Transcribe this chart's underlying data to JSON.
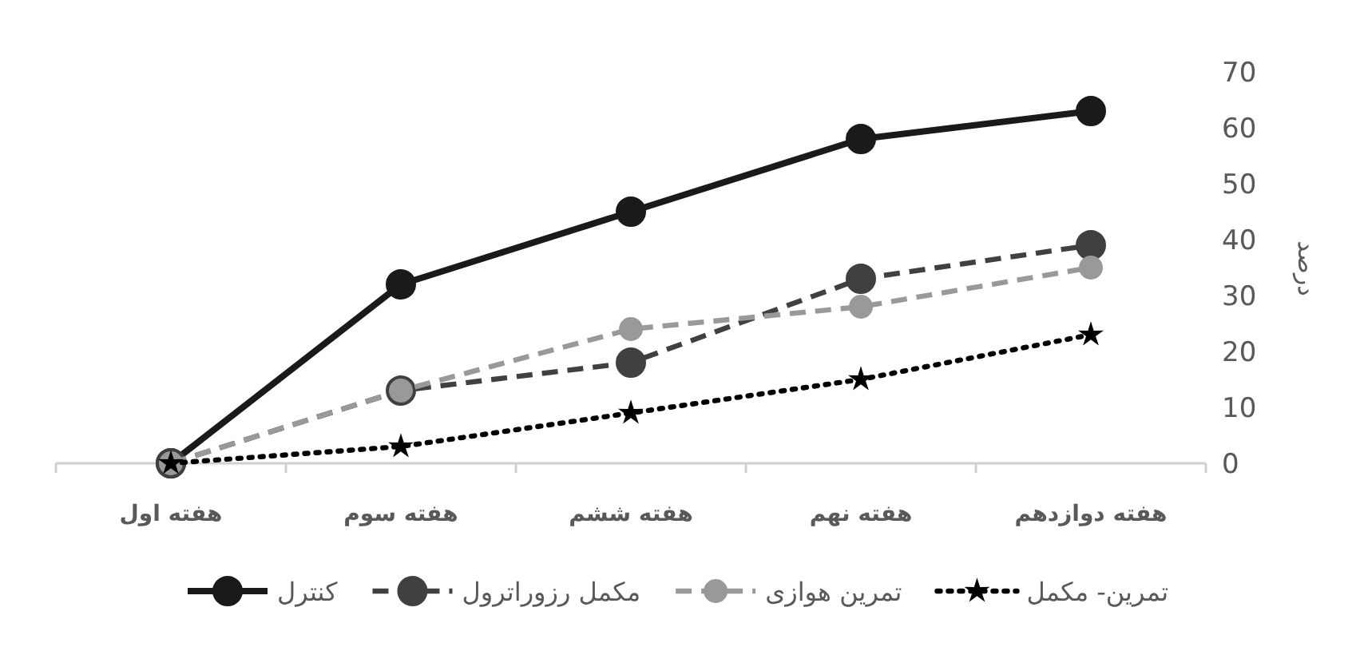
{
  "chart_data": {
    "type": "line",
    "ylabel": "درصد",
    "categories": [
      "هفته اول",
      "هفته سوم",
      "هفته ششم",
      "هفته نهم",
      "هفته دوازدهم"
    ],
    "series": [
      {
        "name": "کنترل",
        "color": "#1a1a1a",
        "line_style": "solid",
        "marker": "circle",
        "values": [
          0,
          32,
          45,
          58,
          63
        ]
      },
      {
        "name": "مکمل رزوراترول",
        "color": "#404040",
        "line_style": "dashed",
        "marker": "circle",
        "values": [
          0,
          13,
          18,
          33,
          39
        ]
      },
      {
        "name": "تمرین هوازی",
        "color": "#999999",
        "line_style": "dashed",
        "marker": "circle",
        "values": [
          0,
          13,
          24,
          28,
          35
        ]
      },
      {
        "name": "تمرین- مکمل",
        "color": "#000000",
        "line_style": "dotted",
        "marker": "star",
        "values": [
          0,
          3,
          9,
          15,
          23
        ]
      }
    ],
    "ylim": [
      0,
      70
    ],
    "yticks": [
      0,
      10,
      20,
      30,
      40,
      50,
      60,
      70
    ],
    "grid": false,
    "legend": "bottom"
  }
}
